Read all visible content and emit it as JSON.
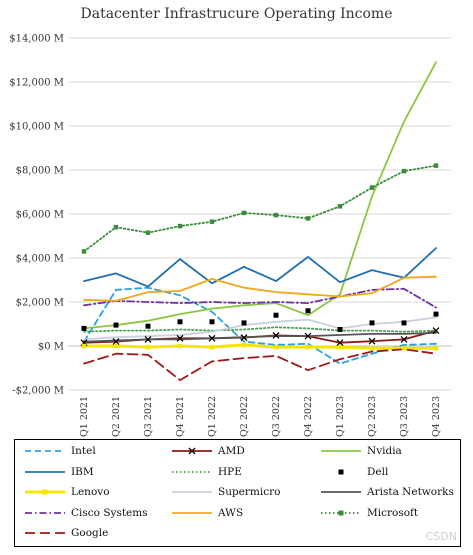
{
  "chart_data": {
    "type": "line",
    "title": "Datacenter Infrastrucure Operating Income",
    "xlabel": "",
    "ylabel": "",
    "categories": [
      "Q1 2021",
      "Q2 2021",
      "Q3 2021",
      "Q4 2021",
      "Q1 2022",
      "Q2 2022",
      "Q3 2022",
      "Q4 2022",
      "Q1 2023",
      "Q2 2023",
      "Q3 2023",
      "Q4 2023"
    ],
    "ylim": [
      -2000,
      14000
    ],
    "yticks": [
      -2000,
      0,
      2000,
      4000,
      6000,
      8000,
      10000,
      12000,
      14000
    ],
    "ytick_labels": [
      "-$2,000 M",
      "$0 M",
      "$2,000 M",
      "$4,000 M",
      "$6,000 M",
      "$8,000 M",
      "$10,000 M",
      "$12,000 M",
      "$14,000 M"
    ],
    "grid": true,
    "legend_position": "bottom",
    "series": [
      {
        "name": "Intel",
        "color": "#29a3dd",
        "dash": "dashed",
        "marker": "none",
        "values": [
          200,
          2550,
          2650,
          2300,
          1550,
          200,
          50,
          100,
          -800,
          -350,
          50,
          100
        ]
      },
      {
        "name": "AMD",
        "color": "#8b1a1a",
        "dash": "solid",
        "marker": "x",
        "values": [
          150,
          200,
          300,
          350,
          350,
          380,
          480,
          450,
          150,
          220,
          300,
          700
        ]
      },
      {
        "name": "Nvidia",
        "color": "#8cc63f",
        "dash": "solid",
        "marker": "none",
        "values": [
          800,
          950,
          1150,
          1450,
          1700,
          1850,
          1950,
          1400,
          2350,
          6800,
          10200,
          12900
        ]
      },
      {
        "name": "IBM",
        "color": "#1f6fb2",
        "dash": "solid",
        "marker": "none",
        "values": [
          2950,
          3300,
          2700,
          3950,
          2850,
          3600,
          2950,
          4050,
          2900,
          3450,
          3100,
          4450
        ]
      },
      {
        "name": "HPE",
        "color": "#3aa84a",
        "dash": "dotted",
        "marker": "none",
        "values": [
          650,
          700,
          700,
          750,
          700,
          750,
          850,
          800,
          700,
          700,
          650,
          700
        ]
      },
      {
        "name": "Dell",
        "color": "#000000",
        "dash": "none",
        "marker": "square",
        "values": [
          800,
          950,
          900,
          1100,
          1100,
          1050,
          1400,
          1600,
          750,
          1050,
          1050,
          1450
        ]
      },
      {
        "name": "Lenovo",
        "color": "#f2e500",
        "dash": "solid",
        "marker": "square",
        "values": [
          0,
          0,
          -50,
          0,
          -50,
          50,
          -50,
          -50,
          -50,
          -100,
          -100,
          -100
        ]
      },
      {
        "name": "Supermicro",
        "color": "#c8d0dc",
        "dash": "solid",
        "marker": "none",
        "values": [
          300,
          400,
          450,
          500,
          650,
          950,
          1100,
          1200,
          800,
          1000,
          1100,
          1300
        ]
      },
      {
        "name": "Arista Networks",
        "color": "#555555",
        "dash": "solid",
        "marker": "none",
        "values": [
          200,
          250,
          300,
          300,
          350,
          400,
          450,
          450,
          500,
          550,
          550,
          600
        ]
      },
      {
        "name": "Cisco Systems",
        "color": "#7030a0",
        "dash": "dashdot",
        "marker": "none",
        "values": [
          1850,
          2050,
          2000,
          1950,
          2000,
          1950,
          2000,
          1950,
          2250,
          2550,
          2600,
          1750
        ]
      },
      {
        "name": "AWS",
        "color": "#f0a818",
        "dash": "solid",
        "marker": "none",
        "values": [
          2100,
          2050,
          2450,
          2500,
          3050,
          2650,
          2450,
          2350,
          2250,
          2400,
          3100,
          3150
        ]
      },
      {
        "name": "Microsoft",
        "color": "#3a8a3a",
        "dash": "dotted",
        "marker": "square",
        "values": [
          4300,
          5400,
          5150,
          5450,
          5650,
          6050,
          5950,
          5800,
          6350,
          7200,
          7950,
          8200
        ]
      },
      {
        "name": "Google",
        "color": "#a01818",
        "dash": "longdash",
        "marker": "none",
        "values": [
          -800,
          -350,
          -400,
          -1550,
          -700,
          -550,
          -450,
          -1100,
          -600,
          -250,
          -150,
          -350
        ]
      }
    ]
  },
  "watermark": "CSDN"
}
